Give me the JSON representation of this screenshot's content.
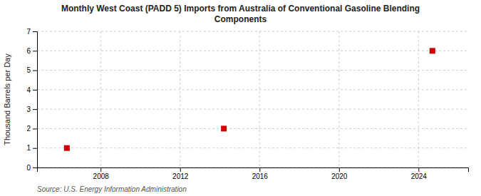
{
  "chart_data": {
    "type": "scatter",
    "title": "Monthly West Coast (PADD 5) Imports from Australia of Conventional Gasoline Blending\nComponents",
    "ylabel": "Thousand Barrels per Day",
    "source": "Source: U.S. Energy Information Administration",
    "x": [
      2006.3,
      2014.2,
      2024.7
    ],
    "values": [
      1,
      2,
      6
    ],
    "color": "#cc0000",
    "marker": "square",
    "xlim": [
      2004.8,
      2026.5
    ],
    "ylim": [
      0,
      7
    ],
    "xticks": [
      2008,
      2012,
      2016,
      2020,
      2024
    ],
    "yticks": [
      0,
      1,
      2,
      3,
      4,
      5,
      6,
      7
    ],
    "grid": true
  }
}
